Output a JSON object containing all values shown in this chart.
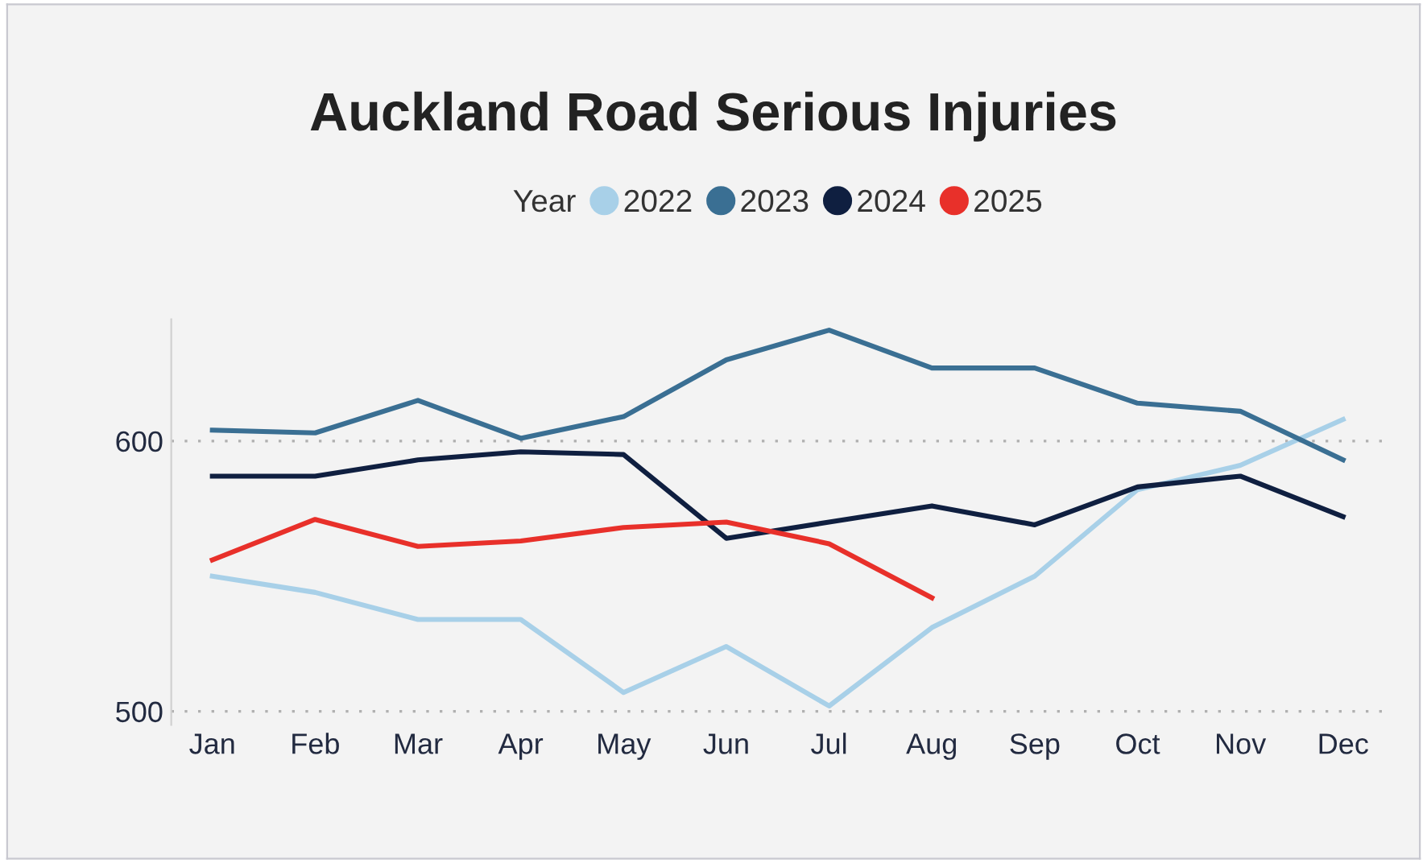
{
  "chart_data": {
    "type": "line",
    "title": "Auckland Road Serious Injuries",
    "legend_title": "Year",
    "categories": [
      "Jan",
      "Feb",
      "Mar",
      "Apr",
      "May",
      "Jun",
      "Jul",
      "Aug",
      "Sep",
      "Oct",
      "Nov",
      "Dec"
    ],
    "series": [
      {
        "name": "2022",
        "color": "#a8d0e8",
        "values": [
          550,
          544,
          534,
          534,
          507,
          524,
          502,
          531,
          550,
          582,
          591,
          608
        ]
      },
      {
        "name": "2023",
        "color": "#3a6f93",
        "values": [
          604,
          603,
          615,
          601,
          609,
          630,
          641,
          627,
          627,
          614,
          611,
          593
        ]
      },
      {
        "name": "2024",
        "color": "#0f1f40",
        "values": [
          587,
          587,
          593,
          596,
          595,
          564,
          570,
          576,
          569,
          583,
          587,
          572
        ]
      },
      {
        "name": "2025",
        "color": "#e8302a",
        "values": [
          556,
          571,
          561,
          563,
          568,
          570,
          562,
          542,
          null,
          null,
          null,
          null
        ]
      }
    ],
    "ylim": [
      495,
      645
    ],
    "yticks": [
      500,
      600
    ],
    "grid": "y",
    "legend": "top",
    "line_style": "solid"
  }
}
